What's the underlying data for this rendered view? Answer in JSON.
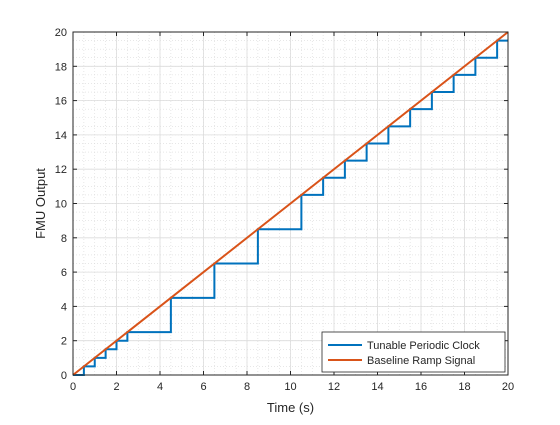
{
  "chart_data": {
    "type": "line",
    "title": "",
    "xlabel": "Time (s)",
    "ylabel": "FMU Output",
    "xlim": [
      0,
      20
    ],
    "ylim": [
      0,
      20
    ],
    "xticks": [
      0,
      2,
      4,
      6,
      8,
      10,
      12,
      14,
      16,
      18,
      20
    ],
    "yticks": [
      0,
      2,
      4,
      6,
      8,
      10,
      12,
      14,
      16,
      18,
      20
    ],
    "grid": true,
    "minor_grid": true,
    "legend_position": "bottom-right",
    "series": [
      {
        "name": "Tunable Periodic Clock",
        "color": "#0072BD",
        "step": true,
        "x": [
          0,
          0.5,
          1,
          1.5,
          2,
          2.5,
          4.5,
          6.5,
          8.5,
          10.5,
          11.5,
          12.5,
          13.5,
          14.5,
          15.5,
          16.5,
          17.5,
          18.5,
          19.5,
          20
        ],
        "y": [
          0,
          0.5,
          1,
          1.5,
          2,
          2.5,
          4.5,
          6.5,
          8.5,
          10.5,
          11.5,
          12.5,
          13.5,
          14.5,
          15.5,
          16.5,
          17.5,
          18.5,
          19.5,
          19.5
        ]
      },
      {
        "name": "Baseline Ramp Signal",
        "color": "#D95319",
        "step": false,
        "x": [
          0,
          20
        ],
        "y": [
          0,
          20
        ]
      }
    ]
  }
}
